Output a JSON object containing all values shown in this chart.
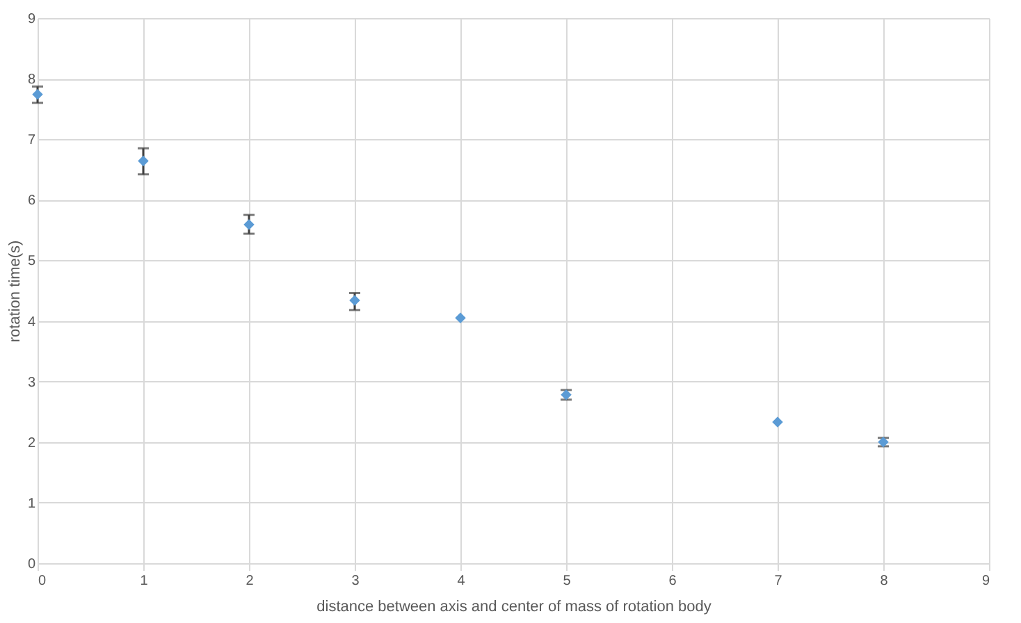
{
  "chart_data": {
    "type": "scatter",
    "xlabel": "distance  between axis and center of mass of rotation body",
    "ylabel": "rotation time(s)",
    "x": [
      0,
      1,
      2,
      3,
      4,
      5,
      7,
      8
    ],
    "series": [
      {
        "color": "#5b9bd5",
        "values": [
          7.74,
          6.64,
          5.59,
          4.34,
          4.05,
          2.78,
          2.33,
          2.0
        ],
        "errors": [
          [
            7.6,
            7.87
          ],
          [
            6.42,
            6.85
          ],
          [
            5.44,
            5.75
          ],
          [
            4.18,
            4.46
          ],
          null,
          [
            2.7,
            2.86
          ],
          null,
          [
            1.93,
            2.07
          ]
        ]
      }
    ],
    "xlim": [
      0,
      9
    ],
    "ylim": [
      0,
      9
    ],
    "xticks": [
      0,
      1,
      2,
      3,
      4,
      5,
      6,
      7,
      8,
      9
    ],
    "yticks": [
      0,
      1,
      2,
      3,
      4,
      5,
      6,
      7,
      8,
      9
    ],
    "grid": true,
    "marker": "diamond"
  }
}
